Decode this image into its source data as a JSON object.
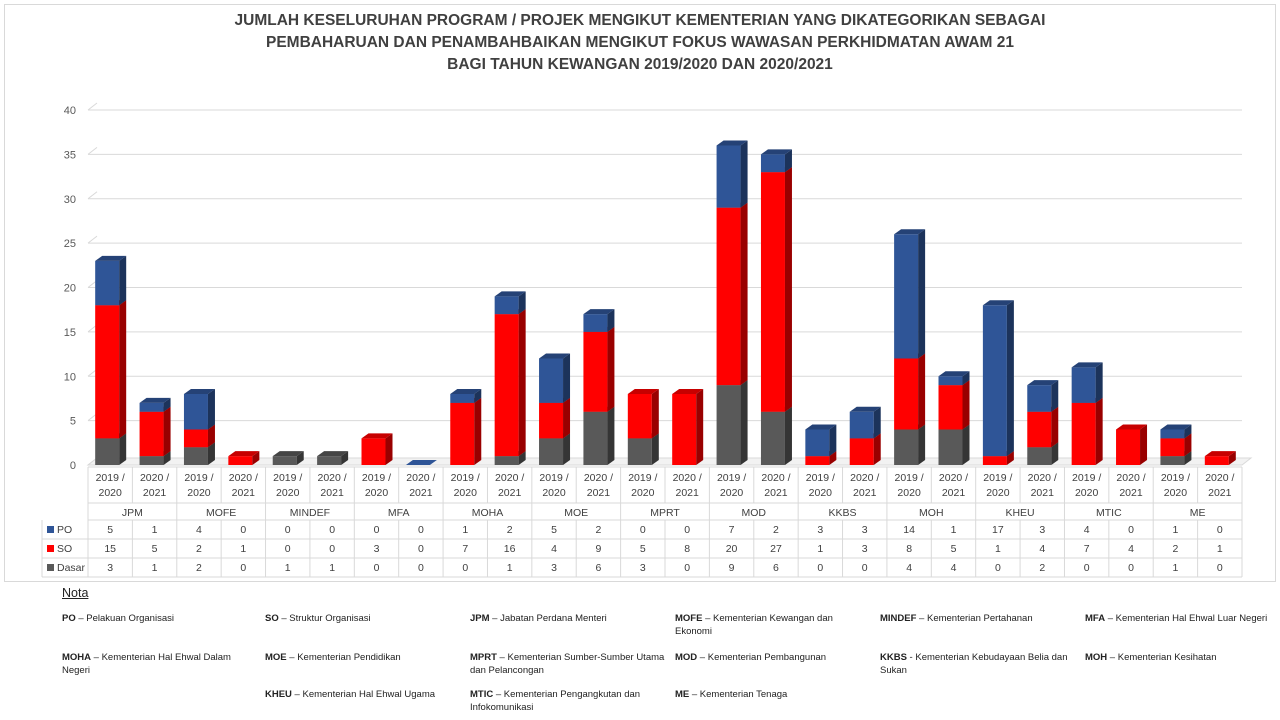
{
  "title_lines": [
    "JUMLAH KESELURUHAN PROGRAM / PROJEK MENGIKUT KEMENTERIAN YANG DIKATEGORIKAN SEBAGAI",
    "PEMBAHARUAN DAN PENAMBAHBAIKAN MENGIKUT FOKUS WAWASAN PERKHIDMATAN AWAM 21",
    "BAGI TAHUN KEWANGAN 2019/2020 DAN 2020/2021"
  ],
  "chart_data": {
    "type": "bar",
    "stacked": true,
    "title": "JUMLAH KESELURUHAN PROGRAM / PROJEK MENGIKUT KEMENTERIAN YANG DIKATEGORIKAN SEBAGAI PEMBAHARUAN DAN PENAMBAHBAIKAN MENGIKUT FOKUS WAWASAN PERKHIDMATAN AWAM 21 BAGI TAHUN KEWANGAN 2019/2020 DAN 2020/2021",
    "groups": [
      "JPM",
      "MOFE",
      "MINDEF",
      "MFA",
      "MOHA",
      "MOE",
      "MPRT",
      "MOD",
      "KKBS",
      "MOH",
      "KHEU",
      "MTIC",
      "ME"
    ],
    "years": [
      "2019 / 2020",
      "2020 / 2021"
    ],
    "series": [
      {
        "name": "PO",
        "color": "#2f5597",
        "values": [
          5,
          1,
          4,
          0,
          0,
          0,
          0,
          0,
          1,
          2,
          5,
          2,
          0,
          0,
          7,
          2,
          3,
          3,
          14,
          1,
          17,
          3,
          4,
          0,
          1,
          0
        ]
      },
      {
        "name": "SO",
        "color": "#ff0000",
        "values": [
          15,
          5,
          2,
          1,
          0,
          0,
          3,
          0,
          7,
          16,
          4,
          9,
          5,
          8,
          20,
          27,
          1,
          3,
          8,
          5,
          1,
          4,
          7,
          4,
          2,
          1
        ]
      },
      {
        "name": "Dasar",
        "color": "#595959",
        "values": [
          3,
          1,
          2,
          0,
          1,
          1,
          0,
          0,
          0,
          1,
          3,
          6,
          3,
          0,
          9,
          6,
          0,
          0,
          4,
          4,
          0,
          2,
          0,
          0,
          1,
          0
        ]
      }
    ],
    "ylim": [
      0,
      40
    ],
    "yticks": [
      0,
      5,
      10,
      15,
      20,
      25,
      30,
      35,
      40
    ],
    "grid": true,
    "legend": "data-table"
  },
  "nota": {
    "heading": "Nota",
    "items": [
      {
        "abbr": "PO",
        "text": " – Pelakuan Organisasi"
      },
      {
        "abbr": "SO",
        "text": " – Struktur Organisasi"
      },
      {
        "abbr": "JPM",
        "text": " – Jabatan Perdana Menteri"
      },
      {
        "abbr": "MOFE",
        "text": " – Kementerian Kewangan dan Ekonomi"
      },
      {
        "abbr": "MINDEF",
        "text": " – Kementerian Pertahanan"
      },
      {
        "abbr": "MFA",
        "text": " – Kementerian Hal Ehwal Luar Negeri"
      },
      {
        "abbr": "MOHA",
        "text": " – Kementerian Hal Ehwal Dalam Negeri"
      },
      {
        "abbr": "MOE",
        "text": " – Kementerian Pendidikan"
      },
      {
        "abbr": "MPRT",
        "text": " – Kementerian Sumber-Sumber Utama dan Pelancongan"
      },
      {
        "abbr": "MOD",
        "text": " – Kementerian Pembangunan"
      },
      {
        "abbr": "KKBS",
        "text": " - Kementerian Kebudayaan Belia dan Sukan"
      },
      {
        "abbr": "MOH",
        "text": " – Kementerian Kesihatan"
      },
      {
        "abbr": "KHEU",
        "text": " – Kementerian Hal Ehwal Ugama"
      },
      {
        "abbr": "MTIC",
        "text": " – Kementerian Pengangkutan dan Infokomunikasi"
      },
      {
        "abbr": "ME",
        "text": " – Kementerian Tenaga"
      }
    ]
  }
}
